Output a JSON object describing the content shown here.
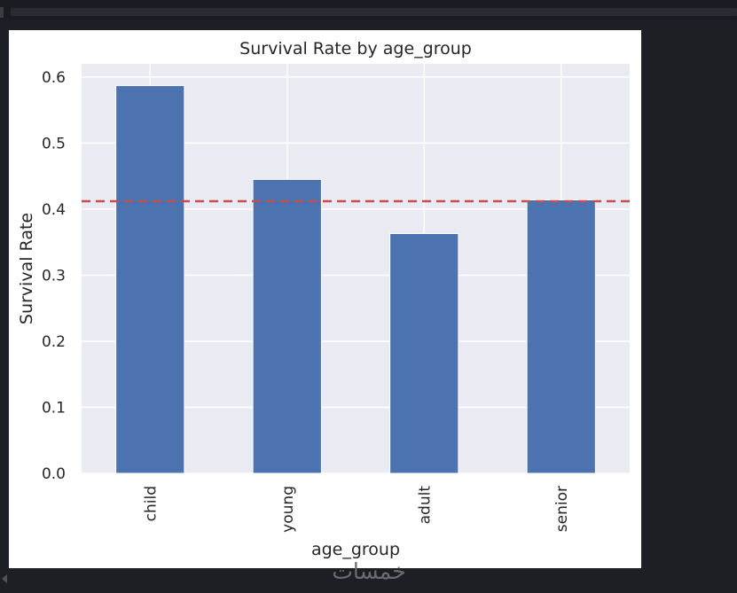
{
  "watermark": "خمسات",
  "chart_data": {
    "type": "bar",
    "title": "Survival Rate by age_group",
    "xlabel": "age_group",
    "ylabel": "Survival Rate",
    "categories": [
      "child",
      "young",
      "adult",
      "senior"
    ],
    "values": [
      0.587,
      0.445,
      0.363,
      0.414
    ],
    "ylim": [
      0,
      0.62
    ],
    "yticks": [
      0.0,
      0.1,
      0.2,
      0.3,
      0.4,
      0.5,
      0.6
    ],
    "ytick_labels": [
      "0.0",
      "0.1",
      "0.2",
      "0.3",
      "0.4",
      "0.5",
      "0.6"
    ],
    "reference_line": {
      "value": 0.412,
      "style": "dashed"
    },
    "grid": true,
    "colors": {
      "bar": "#4c72b0",
      "reference_line": "#c44e52",
      "plot_bg": "#eaeaf2",
      "grid": "#ffffff",
      "text": "#262626"
    }
  }
}
